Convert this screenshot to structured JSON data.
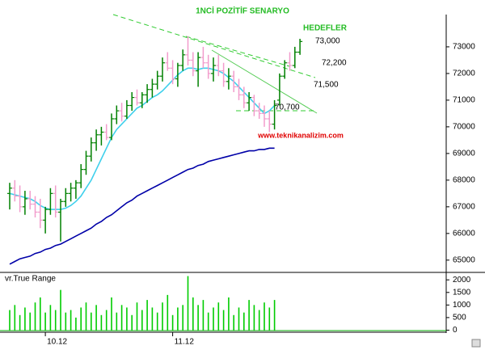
{
  "annotations": {
    "scenario": "1NCİ POZİTİF SENARYO",
    "targets_heading": "HEDEFLER",
    "target_1": "73,000",
    "target_2": "72,200",
    "target_3": "71,500",
    "target_4": "70,700",
    "website": "www.teknikanalizim.com"
  },
  "chart_data": [
    {
      "type": "ohlc",
      "categories": [
        null,
        null,
        null,
        null,
        null,
        null,
        null,
        "10.12",
        null,
        null,
        null,
        null,
        null,
        null,
        null,
        null,
        null,
        null,
        null,
        null,
        null,
        null,
        null,
        null,
        null,
        null,
        null,
        null,
        null,
        null,
        null,
        null,
        "11.12",
        null,
        null,
        null,
        null,
        null,
        null,
        null,
        null,
        null,
        null,
        null,
        null,
        null,
        null,
        null,
        null,
        null,
        null,
        null,
        null,
        null,
        null,
        null,
        null,
        null
      ],
      "open": [
        67500,
        67700,
        67400,
        67000,
        67300,
        67100,
        66800,
        66500,
        66900,
        67500,
        66800,
        67200,
        67500,
        67700,
        67900,
        68400,
        68900,
        69400,
        69700,
        69800,
        69600,
        70300,
        70600,
        70400,
        70800,
        71100,
        70900,
        71200,
        71400,
        71600,
        71900,
        72400,
        72200,
        71800,
        72300,
        72700,
        72500,
        72100,
        72600,
        72400,
        72000,
        72300,
        72100,
        71700,
        71900,
        71500,
        71200,
        70900,
        71100,
        70600,
        70500,
        70300,
        70100,
        71000,
        71900,
        72400,
        72300,
        72800
      ],
      "high": [
        67900,
        68000,
        67800,
        67600,
        67600,
        67400,
        67300,
        67000,
        67700,
        67800,
        67300,
        67700,
        67900,
        68000,
        68600,
        69100,
        69600,
        69900,
        70000,
        70100,
        70500,
        70800,
        70900,
        71000,
        71300,
        71400,
        71300,
        71600,
        71800,
        72100,
        72600,
        72800,
        72500,
        72400,
        72900,
        73400,
        72800,
        72800,
        73000,
        72700,
        72600,
        72700,
        72400,
        72200,
        72100,
        71800,
        71500,
        71300,
        71200,
        70900,
        70800,
        70600,
        71000,
        72000,
        72500,
        72800,
        73000,
        73300
      ],
      "low": [
        66900,
        67200,
        66800,
        66700,
        66900,
        66600,
        66200,
        66000,
        66700,
        66600,
        65700,
        67000,
        67200,
        67300,
        67700,
        68200,
        68700,
        69100,
        69300,
        69500,
        69500,
        70100,
        70200,
        70300,
        70600,
        70800,
        70700,
        70900,
        71100,
        71400,
        71700,
        72100,
        71600,
        71500,
        72100,
        72300,
        71900,
        71500,
        72200,
        71800,
        71700,
        71900,
        71500,
        71400,
        71300,
        71000,
        70700,
        70600,
        70400,
        70300,
        70000,
        69800,
        69900,
        70800,
        71800,
        72100,
        72200,
        72700
      ],
      "close": [
        67700,
        67400,
        67000,
        67300,
        67100,
        66800,
        66500,
        66900,
        67500,
        66800,
        67200,
        67500,
        67700,
        67900,
        68400,
        68900,
        69400,
        69700,
        69800,
        69600,
        70300,
        70600,
        70400,
        70800,
        71100,
        70900,
        71200,
        71400,
        71600,
        71900,
        72400,
        72200,
        71800,
        72300,
        72700,
        72500,
        72100,
        72600,
        72400,
        72000,
        72300,
        72100,
        71700,
        71900,
        71500,
        71200,
        70900,
        71100,
        70600,
        70500,
        70300,
        70100,
        70800,
        71900,
        72400,
        72300,
        72800,
        73200
      ],
      "up_color": "#008000",
      "down_color": "#f29ccc",
      "lines": [
        {
          "color": "#3fd0ec",
          "values": [
            67500,
            67450,
            67400,
            67350,
            67300,
            67200,
            67050,
            66950,
            66900,
            66900,
            66900,
            66950,
            67050,
            67200,
            67400,
            67700,
            68000,
            68400,
            68800,
            69200,
            69600,
            69900,
            70100,
            70300,
            70500,
            70700,
            70800,
            70950,
            71100,
            71200,
            71350,
            71550,
            71750,
            71950,
            72100,
            72200,
            72200,
            72150,
            72200,
            72200,
            72150,
            72100,
            72000,
            71850,
            71700,
            71500,
            71300,
            71100,
            70900,
            70700,
            70500,
            70600,
            70800,
            null,
            null,
            null,
            null,
            null
          ]
        },
        {
          "color": "#0000a8",
          "values": [
            64850,
            64950,
            65050,
            65100,
            65150,
            65250,
            65300,
            65400,
            65450,
            65550,
            65600,
            65700,
            65800,
            65900,
            66000,
            66100,
            66200,
            66350,
            66450,
            66600,
            66700,
            66850,
            67000,
            67150,
            67250,
            67400,
            67500,
            67600,
            67700,
            67800,
            67900,
            68000,
            68100,
            68200,
            68300,
            68400,
            68450,
            68550,
            68600,
            68700,
            68750,
            68800,
            68850,
            68900,
            68950,
            69000,
            69050,
            69100,
            69100,
            69150,
            69150,
            69200,
            69200,
            null,
            null,
            null,
            null,
            null
          ]
        }
      ],
      "ylim": [
        64600,
        74150
      ],
      "yticks": [
        65000,
        66000,
        67000,
        68000,
        69000,
        70000,
        71000,
        72000,
        73000
      ]
    },
    {
      "type": "bar",
      "title": "vr.True Range",
      "color": "#00cc00",
      "values": [
        800,
        1000,
        600,
        900,
        700,
        1100,
        1300,
        700,
        1000,
        800,
        1600,
        700,
        800,
        500,
        900,
        1100,
        700,
        1000,
        600,
        800,
        1300,
        700,
        1000,
        900,
        600,
        1100,
        800,
        1200,
        900,
        700,
        1100,
        1400,
        600,
        900,
        1000,
        2150,
        1300,
        1000,
        1200,
        700,
        900,
        1100,
        800,
        1300,
        600,
        900,
        700,
        1200,
        1000,
        800,
        1100,
        900,
        1200,
        null,
        null,
        null,
        null,
        null
      ],
      "ylim": [
        -50,
        2200
      ],
      "yticks": [
        0,
        500,
        1000,
        1500,
        2000
      ]
    }
  ]
}
